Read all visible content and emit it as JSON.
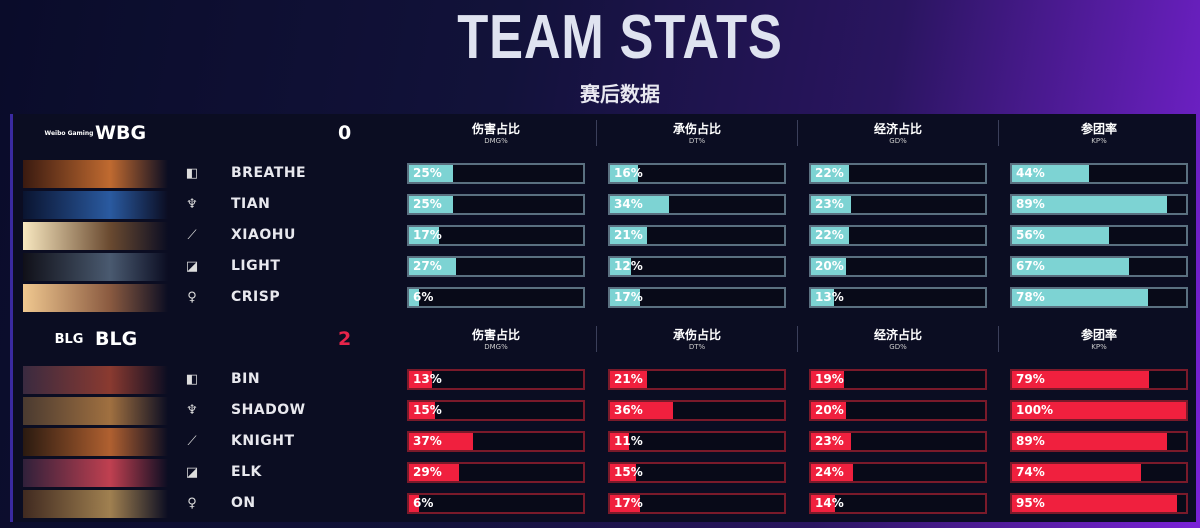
{
  "header": {
    "title": "TEAM STATS",
    "subtitle": "赛后数据"
  },
  "columns": [
    {
      "cn": "伤害占比",
      "en": "DMG%"
    },
    {
      "cn": "承伤占比",
      "en": "DT%"
    },
    {
      "cn": "经济占比",
      "en": "GD%"
    },
    {
      "cn": "参团率",
      "en": "KP%"
    }
  ],
  "teams": [
    {
      "name": "WBG",
      "logo_text": "Weibo Gaming",
      "score": "0",
      "color": "#7dd3d3",
      "border": "#5a7080",
      "score_color": "#ffffff",
      "players": [
        {
          "name": "BREATHE",
          "role": "top-icon",
          "stats": [
            25,
            16,
            22,
            44
          ]
        },
        {
          "name": "TIAN",
          "role": "jungle-icon",
          "stats": [
            25,
            34,
            23,
            89
          ]
        },
        {
          "name": "XIAOHU",
          "role": "mid-icon",
          "stats": [
            17,
            21,
            22,
            56
          ]
        },
        {
          "name": "LIGHT",
          "role": "bot-icon",
          "stats": [
            27,
            12,
            20,
            67
          ]
        },
        {
          "name": "CRISP",
          "role": "support-icon",
          "stats": [
            6,
            17,
            13,
            78
          ]
        }
      ]
    },
    {
      "name": "BLG",
      "logo_text": "BLG",
      "score": "2",
      "color": "#f0203e",
      "border": "#7a1a2a",
      "score_color": "#e8244a",
      "players": [
        {
          "name": "BIN",
          "role": "top-icon",
          "stats": [
            13,
            21,
            19,
            79
          ]
        },
        {
          "name": "SHADOW",
          "role": "jungle-icon",
          "stats": [
            15,
            36,
            20,
            100
          ]
        },
        {
          "name": "KNIGHT",
          "role": "mid-icon",
          "stats": [
            37,
            11,
            23,
            89
          ]
        },
        {
          "name": "ELK",
          "role": "bot-icon",
          "stats": [
            29,
            15,
            24,
            74
          ]
        },
        {
          "name": "ON",
          "role": "support-icon",
          "stats": [
            6,
            17,
            14,
            95
          ]
        }
      ]
    }
  ]
}
